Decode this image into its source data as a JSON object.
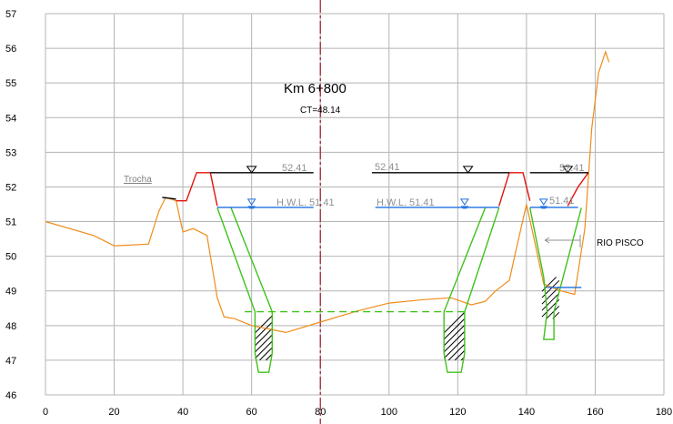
{
  "chart_data": {
    "type": "line",
    "title": "Km  6+800",
    "subtitle": "CT=48.14",
    "xlim": [
      0,
      180
    ],
    "ylim": [
      46,
      57
    ],
    "xticks": [
      "0",
      "20",
      "40",
      "60",
      "80",
      "100",
      "120",
      "140",
      "160",
      "180"
    ],
    "yticks": [
      "46",
      "47",
      "48",
      "49",
      "50",
      "51",
      "52",
      "53",
      "54",
      "55",
      "56",
      "57"
    ],
    "grid": true,
    "centerline_x": 80,
    "annotations": {
      "trocha": "Trocha",
      "level_left": "52.41",
      "level_mid": "52.41",
      "level_right": "52.41",
      "hwl_left": "H.W.L.  51.41",
      "hwl_mid": "H.W.L.  51.41",
      "hwl_right": "51.41",
      "river": "RIO   PISCO"
    },
    "series": [
      {
        "role": "terrain",
        "color": "#f08c1a",
        "points": [
          [
            0,
            51
          ],
          [
            14,
            50.6
          ],
          [
            20,
            50.3
          ],
          [
            30,
            50.35
          ],
          [
            33,
            51.3
          ],
          [
            35,
            51.7
          ],
          [
            38,
            51.6
          ],
          [
            40,
            50.7
          ],
          [
            43,
            50.8
          ],
          [
            47,
            50.6
          ],
          [
            50,
            48.8
          ],
          [
            52,
            48.25
          ],
          [
            55,
            48.2
          ],
          [
            60,
            48
          ],
          [
            70,
            47.8
          ],
          [
            80,
            48.1
          ],
          [
            90,
            48.4
          ],
          [
            100,
            48.65
          ],
          [
            110,
            48.75
          ],
          [
            118,
            48.8
          ],
          [
            124,
            48.6
          ],
          [
            128,
            48.7
          ],
          [
            131,
            49
          ],
          [
            135,
            49.3
          ],
          [
            137,
            50.2
          ],
          [
            140,
            51.5
          ],
          [
            142,
            50.6
          ],
          [
            145,
            49.2
          ],
          [
            150,
            49
          ],
          [
            154,
            48.9
          ],
          [
            157,
            50.8
          ],
          [
            159,
            53.7
          ],
          [
            161,
            55.3
          ],
          [
            163,
            55.9
          ],
          [
            164,
            55.6
          ]
        ]
      },
      {
        "role": "trocha",
        "color": "#000000",
        "points": [
          [
            34,
            51.7
          ],
          [
            38,
            51.65
          ]
        ]
      },
      {
        "role": "levee-left",
        "color": "#e3120b",
        "points": [
          [
            38,
            51.6
          ],
          [
            41,
            51.6
          ],
          [
            44,
            52.41
          ],
          [
            48,
            52.41
          ],
          [
            50,
            51.45
          ]
        ]
      },
      {
        "role": "levee-mid",
        "color": "#e3120b",
        "points": [
          [
            132,
            51.45
          ],
          [
            135,
            52.41
          ],
          [
            139,
            52.41
          ],
          [
            141,
            51.6
          ]
        ]
      },
      {
        "role": "levee-right",
        "color": "#e3120b",
        "points": [
          [
            152,
            51.45
          ],
          [
            155,
            52
          ],
          [
            158,
            52.41
          ]
        ]
      },
      {
        "role": "excavation-left",
        "color": "#3fc21a",
        "points": [
          [
            50,
            51.4
          ],
          [
            61,
            48.4
          ],
          [
            61,
            47.2
          ],
          [
            62,
            46.65
          ],
          [
            65,
            46.65
          ],
          [
            66,
            47.2
          ],
          [
            66,
            48.4
          ],
          [
            54,
            51.4
          ]
        ]
      },
      {
        "role": "excavation-mid",
        "color": "#3fc21a",
        "points": [
          [
            132,
            51.4
          ],
          [
            122,
            48.4
          ],
          [
            122,
            47.2
          ],
          [
            121,
            46.65
          ],
          [
            117,
            46.65
          ],
          [
            116,
            47.2
          ],
          [
            116,
            48.4
          ],
          [
            128,
            51.4
          ]
        ]
      },
      {
        "role": "excavation-right",
        "color": "#3fc21a",
        "points": [
          [
            141,
            51.4
          ],
          [
            145,
            49.4
          ],
          [
            146,
            48.4
          ],
          [
            145,
            47.6
          ],
          [
            148,
            47.6
          ],
          [
            148,
            48.4
          ],
          [
            156,
            51.4
          ]
        ]
      },
      {
        "role": "crest-level",
        "color": "#000000",
        "points": [
          [
            48,
            52.41
          ],
          [
            78,
            52.41
          ]
        ]
      },
      {
        "role": "crest-level",
        "color": "#000000",
        "points": [
          [
            95,
            52.41
          ],
          [
            135,
            52.41
          ]
        ]
      },
      {
        "role": "crest-level",
        "color": "#000000",
        "points": [
          [
            141,
            52.41
          ],
          [
            158,
            52.41
          ]
        ]
      },
      {
        "role": "hwl",
        "color": "#1f6fe0",
        "points": [
          [
            50,
            51.41
          ],
          [
            78,
            51.41
          ]
        ]
      },
      {
        "role": "hwl",
        "color": "#1f6fe0",
        "points": [
          [
            96,
            51.41
          ],
          [
            132,
            51.41
          ]
        ]
      },
      {
        "role": "hwl",
        "color": "#1f6fe0",
        "points": [
          [
            141,
            51.41
          ],
          [
            155,
            51.41
          ]
        ]
      },
      {
        "role": "river-level",
        "color": "#1f6fe0",
        "points": [
          [
            146,
            49.1
          ],
          [
            156,
            49.1
          ]
        ]
      },
      {
        "role": "canal-bottom",
        "color": "#3fc21a",
        "dashed": true,
        "points": [
          [
            58,
            48.4
          ],
          [
            122,
            48.4
          ]
        ]
      }
    ]
  }
}
